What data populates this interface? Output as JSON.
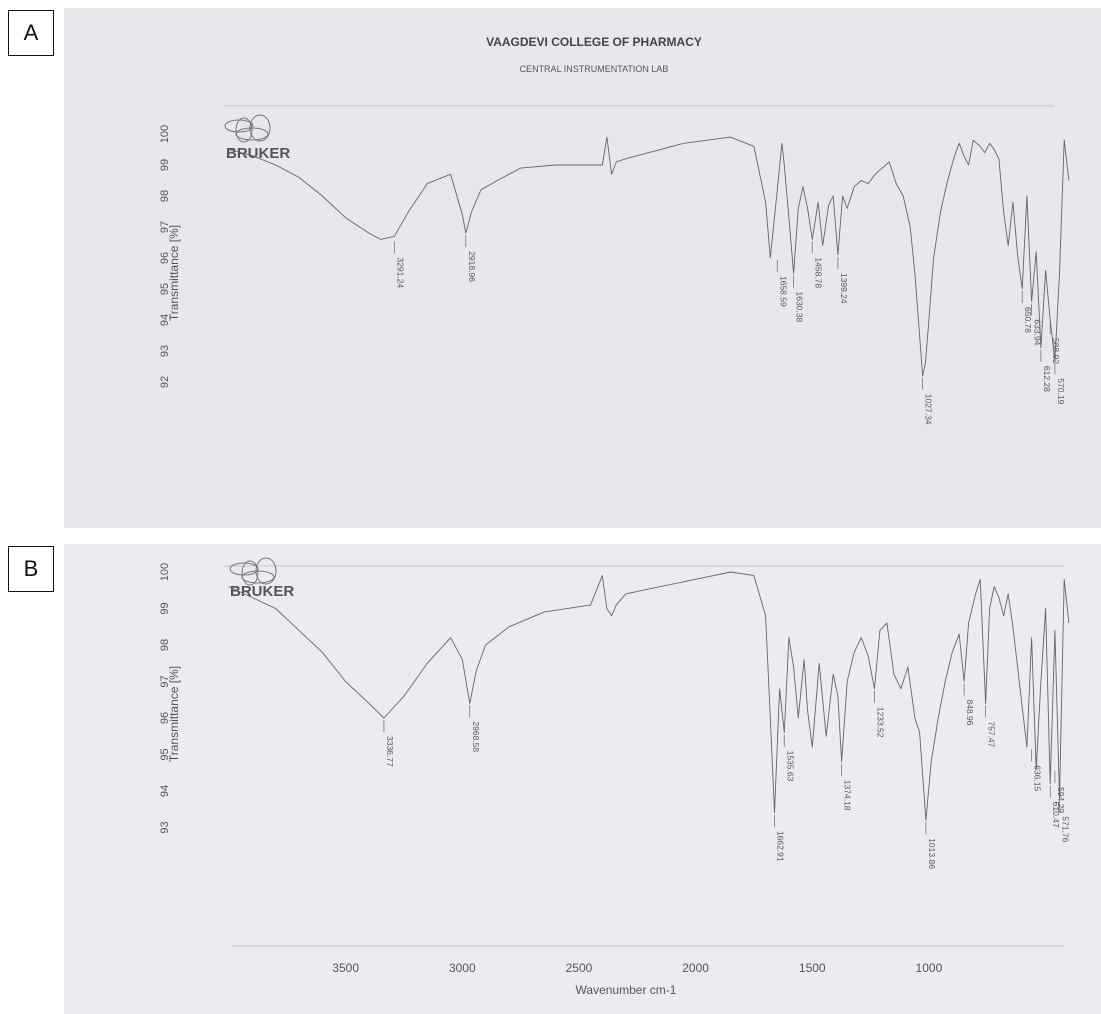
{
  "panels": [
    {
      "label": "A",
      "header": {
        "institution": "VAAGDEVI COLLEGE OF PHARMACY",
        "lab": "CENTRAL INSTRUMENTATION LAB"
      },
      "brand": "BRUKER",
      "ylabel": "Transmittance [%]",
      "yticks": [
        "100",
        "99",
        "98",
        "97",
        "96",
        "95",
        "94",
        "93",
        "92"
      ]
    },
    {
      "label": "B",
      "brand": "BRUKER",
      "ylabel": "Transmittance [%]",
      "yticks": [
        "100",
        "99",
        "98",
        "97",
        "96",
        "95",
        "94",
        "93"
      ],
      "xlabel": "Wavenumber cm-1",
      "xticks": [
        "3500",
        "3000",
        "2500",
        "2000",
        "1500",
        "1000"
      ]
    }
  ],
  "chart_data": [
    {
      "type": "line",
      "title": "",
      "ylabel": "Transmittance [%]",
      "ylim": [
        91.5,
        100
      ],
      "xlim": [
        4000,
        400
      ],
      "xreversed": true,
      "series": [
        {
          "x": [
            4000,
            3900,
            3800,
            3700,
            3600,
            3500,
            3400,
            3350,
            3291,
            3230,
            3150,
            3050,
            3000,
            2985,
            2960,
            2920,
            2850,
            2750,
            2600,
            2400,
            2380,
            2360,
            2340,
            2300,
            2200,
            2050,
            1950,
            1850,
            1750,
            1700,
            1680,
            1650,
            1630,
            1620,
            1600,
            1580,
            1560,
            1540,
            1520,
            1500,
            1475,
            1455,
            1430,
            1410,
            1390,
            1370,
            1350,
            1320,
            1290,
            1260,
            1230,
            1200,
            1170,
            1140,
            1110,
            1080,
            1060,
            1040,
            1027,
            1015,
            1000,
            980,
            950,
            920,
            890,
            870,
            850,
            830,
            810,
            780,
            760,
            740,
            720,
            700,
            680,
            660,
            640,
            620,
            600,
            580,
            560,
            540,
            520,
            500,
            480,
            460,
            440,
            420,
            400
          ],
          "y": [
            99.5,
            99.3,
            99.0,
            98.6,
            98.0,
            97.3,
            96.8,
            96.6,
            96.7,
            97.5,
            98.4,
            98.7,
            97.4,
            96.8,
            97.5,
            98.2,
            98.5,
            98.9,
            99.0,
            99.0,
            99.9,
            98.7,
            99.1,
            99.2,
            99.4,
            99.7,
            99.8,
            99.9,
            99.6,
            97.8,
            96.0,
            98.2,
            99.7,
            99.0,
            97.3,
            95.5,
            97.6,
            98.3,
            97.6,
            96.6,
            97.8,
            96.4,
            97.7,
            98.0,
            96.1,
            98.0,
            97.6,
            98.3,
            98.5,
            98.4,
            98.7,
            98.9,
            99.1,
            98.4,
            98.0,
            97.0,
            95.5,
            93.5,
            92.2,
            92.6,
            94.0,
            96.0,
            97.5,
            98.5,
            99.3,
            99.7,
            99.3,
            99.0,
            99.8,
            99.6,
            99.4,
            99.7,
            99.5,
            99.2,
            97.5,
            96.4,
            97.8,
            96.1,
            95.0,
            98.0,
            94.6,
            96.2,
            93.1,
            95.6,
            94.0,
            92.7,
            95.5,
            99.8,
            98.5
          ]
        }
      ],
      "peak_labels": [
        {
          "label": "3291.24",
          "x": 3291,
          "y": 96.6
        },
        {
          "label": "2918.96",
          "x": 2985,
          "y": 96.8
        },
        {
          "label": "1658.59",
          "x": 1650,
          "y": 96.0
        },
        {
          "label": "1630.38",
          "x": 1580,
          "y": 95.5
        },
        {
          "label": "1458.78",
          "x": 1500,
          "y": 96.6
        },
        {
          "label": "1399.24",
          "x": 1390,
          "y": 96.1
        },
        {
          "label": "1027.34",
          "x": 1027,
          "y": 92.2
        },
        {
          "label": "650.78",
          "x": 600,
          "y": 95.0
        },
        {
          "label": "633.94",
          "x": 560,
          "y": 94.6
        },
        {
          "label": "612.28",
          "x": 520,
          "y": 93.1
        },
        {
          "label": "588.92",
          "x": 480,
          "y": 94.0
        },
        {
          "label": "570.19",
          "x": 460,
          "y": 92.7
        }
      ]
    },
    {
      "type": "line",
      "title": "",
      "ylabel": "Transmittance [%]",
      "xlabel": "Wavenumber cm-1",
      "ylim": [
        92.2,
        100
      ],
      "xlim": [
        4000,
        400
      ],
      "xreversed": true,
      "series": [
        {
          "x": [
            4000,
            3900,
            3800,
            3700,
            3600,
            3500,
            3400,
            3336,
            3250,
            3150,
            3050,
            3000,
            2968,
            2940,
            2900,
            2800,
            2650,
            2450,
            2400,
            2380,
            2360,
            2340,
            2300,
            2150,
            2000,
            1850,
            1750,
            1700,
            1680,
            1662,
            1640,
            1620,
            1600,
            1580,
            1560,
            1535,
            1520,
            1500,
            1470,
            1440,
            1410,
            1390,
            1374,
            1350,
            1320,
            1290,
            1260,
            1233,
            1210,
            1180,
            1150,
            1120,
            1090,
            1060,
            1040,
            1013,
            990,
            960,
            930,
            900,
            870,
            849,
            830,
            800,
            780,
            757,
            740,
            720,
            700,
            680,
            660,
            640,
            620,
            600,
            580,
            560,
            540,
            520,
            500,
            480,
            460,
            440,
            420,
            400
          ],
          "y": [
            99.6,
            99.3,
            99.0,
            98.4,
            97.8,
            97.0,
            96.4,
            96.0,
            96.6,
            97.5,
            98.2,
            97.6,
            96.4,
            97.3,
            98.0,
            98.5,
            98.9,
            99.1,
            99.9,
            99.0,
            98.8,
            99.1,
            99.4,
            99.6,
            99.8,
            100.0,
            99.9,
            98.8,
            96.0,
            93.4,
            96.8,
            95.6,
            98.2,
            97.4,
            96.0,
            97.6,
            96.2,
            95.2,
            97.5,
            95.5,
            97.2,
            96.6,
            94.8,
            97.0,
            97.8,
            98.2,
            97.7,
            96.8,
            98.4,
            98.6,
            97.2,
            96.8,
            97.4,
            96.0,
            95.6,
            93.2,
            94.8,
            96.0,
            97.0,
            97.8,
            98.3,
            97.0,
            98.6,
            99.4,
            99.8,
            96.4,
            99.0,
            99.6,
            99.3,
            98.8,
            99.4,
            98.5,
            97.4,
            96.3,
            95.2,
            98.2,
            94.6,
            97.0,
            99.0,
            94.2,
            98.4,
            93.8,
            99.8,
            98.6
          ]
        }
      ],
      "peak_labels": [
        {
          "label": "3336.77",
          "x": 3336,
          "y": 96.0
        },
        {
          "label": "2968.58",
          "x": 2968,
          "y": 96.4
        },
        {
          "label": "1662.91",
          "x": 1662,
          "y": 93.4
        },
        {
          "label": "1535.63",
          "x": 1620,
          "y": 95.6
        },
        {
          "label": "1374.18",
          "x": 1374,
          "y": 94.8
        },
        {
          "label": "1233.52",
          "x": 1233,
          "y": 96.8
        },
        {
          "label": "1013.86",
          "x": 1013,
          "y": 93.2
        },
        {
          "label": "848.96",
          "x": 849,
          "y": 97.0
        },
        {
          "label": "757.47",
          "x": 757,
          "y": 96.4
        },
        {
          "label": "636.15",
          "x": 560,
          "y": 95.2
        },
        {
          "label": "610.47",
          "x": 480,
          "y": 94.2
        },
        {
          "label": "594.29",
          "x": 460,
          "y": 94.6
        },
        {
          "label": "571.76",
          "x": 440,
          "y": 93.8
        }
      ]
    }
  ]
}
